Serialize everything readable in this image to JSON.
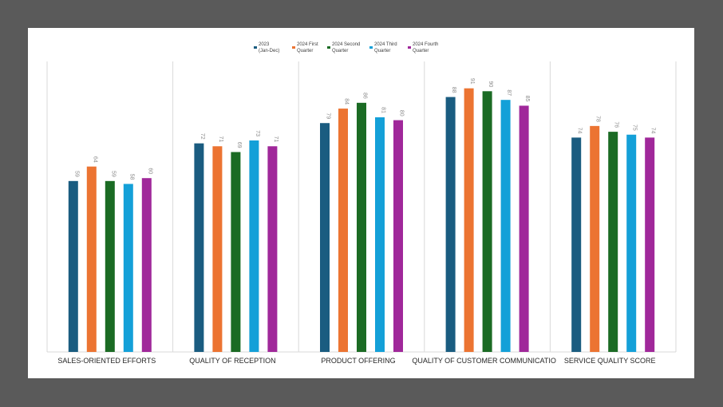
{
  "chart_data": {
    "type": "bar",
    "title": "",
    "xlabel": "",
    "ylabel": "",
    "ylim": [
      0,
      100
    ],
    "grid": false,
    "legend_position": "top-center",
    "categories": [
      "SALES-ORIENTED EFFORTS",
      "QUALITY OF RECEPTION",
      "PRODUCT OFFERING",
      "QUALITY OF CUSTOMER COMMUNICATIO",
      "SERVICE QUALITY SCORE"
    ],
    "series": [
      {
        "name": "2023 (Jan-Dec)",
        "legend_lines": [
          "2023",
          "(Jan-Dec)"
        ],
        "color": "#1a5c80",
        "values": [
          59,
          72,
          79,
          88,
          74
        ]
      },
      {
        "name": "2024 First Quarter",
        "legend_lines": [
          "2024 First",
          "Quarter"
        ],
        "color": "#ec7432",
        "values": [
          64,
          71,
          84,
          91,
          78
        ]
      },
      {
        "name": "2024 Second Quarter",
        "legend_lines": [
          "2024 Second",
          "Quarter"
        ],
        "color": "#1b6b24",
        "values": [
          59,
          69,
          86,
          90,
          76
        ]
      },
      {
        "name": "2024 Third Quarter",
        "legend_lines": [
          "2024 Third",
          "Quarter"
        ],
        "color": "#14a0d8",
        "values": [
          58,
          73,
          81,
          87,
          75
        ]
      },
      {
        "name": "2024 Fourth Quarter",
        "legend_lines": [
          "2024 Fourth",
          "Quarter"
        ],
        "color": "#a0289a",
        "values": [
          60,
          71,
          80,
          85,
          74
        ]
      }
    ]
  }
}
